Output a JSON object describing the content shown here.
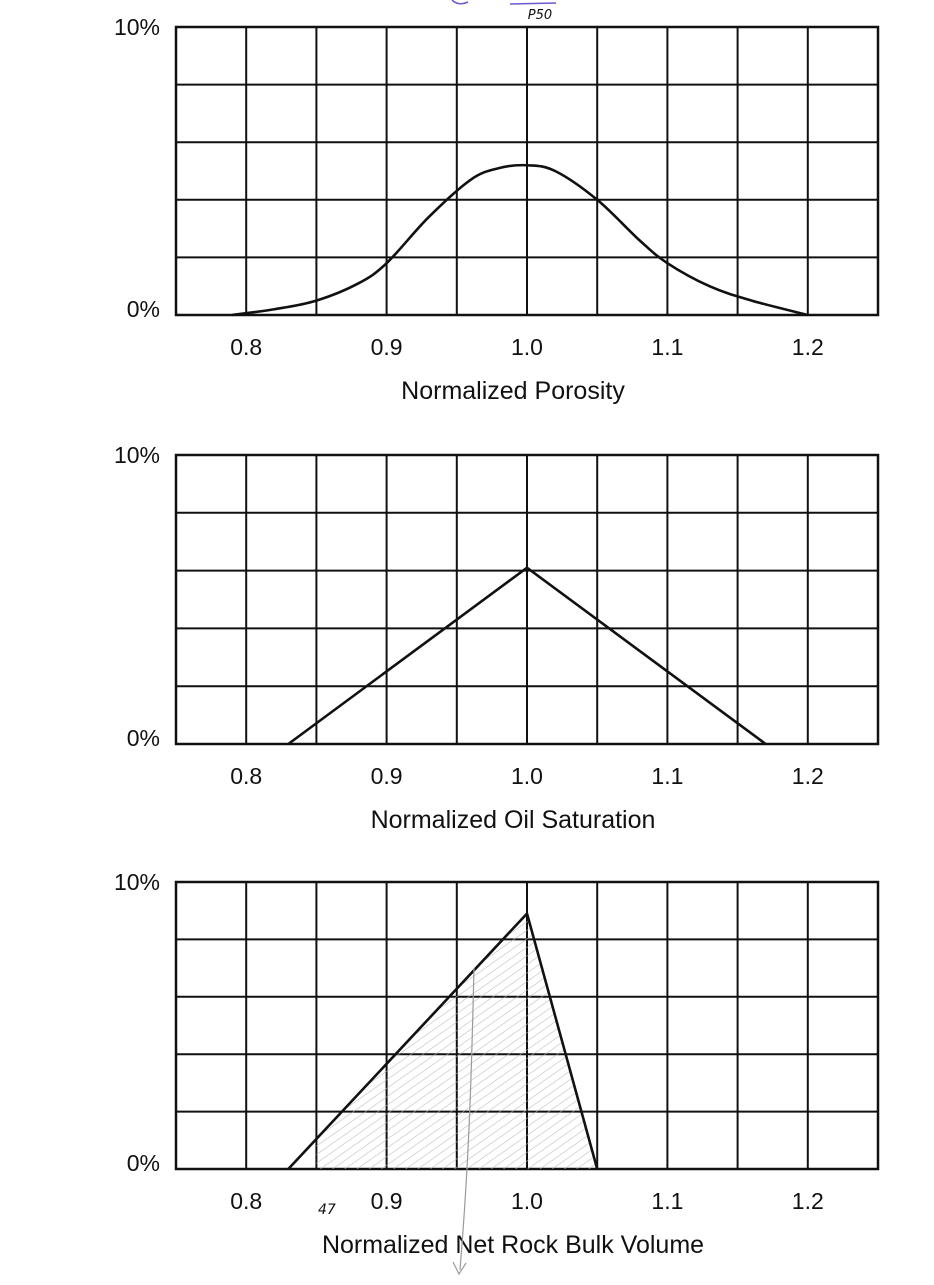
{
  "annotations": {
    "top_note": "P50",
    "bottom_note": "47"
  },
  "colors": {
    "line": "#111111",
    "grid": "#111111",
    "hatch": "#b8b8b8",
    "note_ink": "#6a5acd"
  },
  "chart_data": [
    {
      "type": "line",
      "xlabel": "Normalized Porosity",
      "ylabel": "",
      "y_ticks": [
        "10%",
        "0%"
      ],
      "x_ticks": [
        "0.8",
        "0.9",
        "1.0",
        "1.1",
        "1.2"
      ],
      "xlim": [
        0.75,
        1.25
      ],
      "ylim": [
        0,
        10
      ],
      "grid": true,
      "series": [
        {
          "x": [
            0.79,
            0.82,
            0.85,
            0.88,
            0.9,
            0.93,
            0.96,
            0.98,
            1.0,
            1.02,
            1.05,
            1.08,
            1.1,
            1.13,
            1.16,
            1.2
          ],
          "y": [
            0.0,
            0.2,
            0.5,
            1.1,
            1.8,
            3.4,
            4.7,
            5.1,
            5.2,
            5.0,
            4.0,
            2.6,
            1.8,
            1.0,
            0.5,
            0.0
          ]
        }
      ]
    },
    {
      "type": "line",
      "xlabel": "Normalized Oil Saturation",
      "ylabel": "",
      "y_ticks": [
        "10%",
        "0%"
      ],
      "x_ticks": [
        "0.8",
        "0.9",
        "1.0",
        "1.1",
        "1.2"
      ],
      "xlim": [
        0.75,
        1.25
      ],
      "ylim": [
        0,
        10
      ],
      "grid": true,
      "series": [
        {
          "x": [
            0.83,
            1.0,
            1.17
          ],
          "y": [
            0.0,
            6.1,
            0.0
          ]
        }
      ]
    },
    {
      "type": "area",
      "xlabel": "Normalized Net Rock Bulk Volume",
      "ylabel": "",
      "y_ticks": [
        "10%",
        "0%"
      ],
      "x_ticks": [
        "0.8",
        "0.9",
        "1.0",
        "1.1",
        "1.2"
      ],
      "xlim": [
        0.75,
        1.25
      ],
      "ylim": [
        0,
        10
      ],
      "grid": true,
      "series": [
        {
          "x": [
            0.83,
            1.0,
            1.05
          ],
          "y": [
            0.0,
            8.9,
            0.0
          ]
        }
      ],
      "shaded_region": {
        "x_from": 0.85,
        "x_to": 1.05
      }
    }
  ]
}
